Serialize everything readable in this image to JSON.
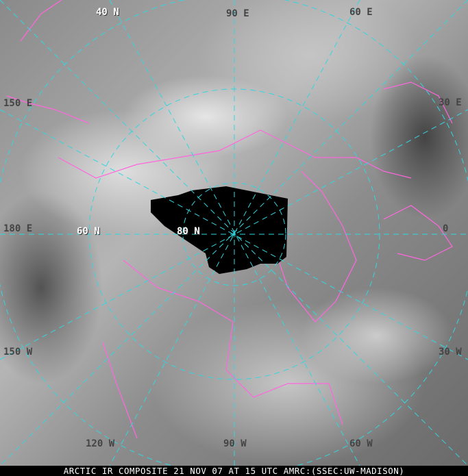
{
  "caption": "ARCTIC IR COMPOSITE 21 NOV 07 AT 15 UTC AMRC:(SSEC:UW-MADISON)",
  "labels": {
    "lat_40n": "40 N",
    "lat_60n": "60 N",
    "lat_80n": "80 N",
    "lon_90e": "90 E",
    "lon_60e": "60 E",
    "lon_30e": "30 E",
    "lon_0": "0",
    "lon_30w": "30 W",
    "lon_60w": "60 W",
    "lon_90w": "90 W",
    "lon_120w": "120 W",
    "lon_150w": "150 W",
    "lon_180e": "180 E",
    "lon_150e": "150 E"
  },
  "colors": {
    "grid": "#33d6e0",
    "coastline": "#ff66dd",
    "no_data": "#000000"
  }
}
